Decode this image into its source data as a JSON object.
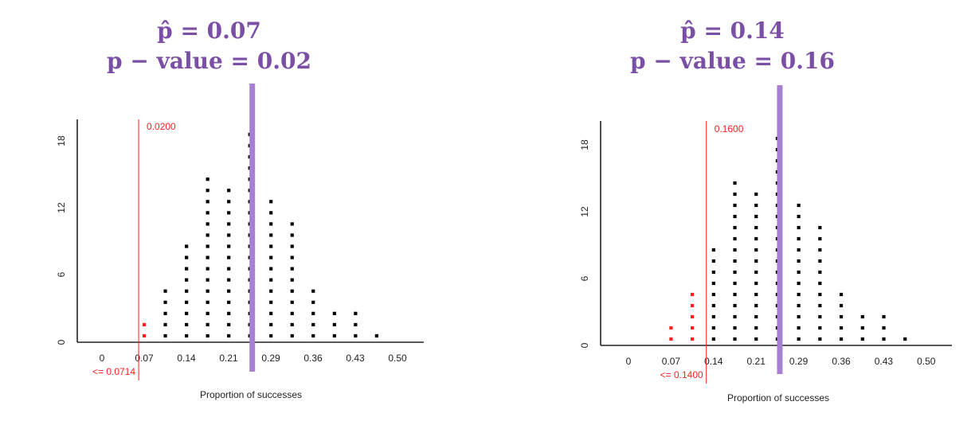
{
  "chart_data": [
    {
      "type": "scatter",
      "subtype": "dotplot",
      "title_line1": "p̂ = 0.07",
      "title_line2": "p − value = 0.02",
      "xlabel": "Proportion of successes",
      "x_ticks": [
        "0",
        "0.07",
        "0.14",
        "0.21",
        "0.29",
        "0.36",
        "0.43",
        "0.50"
      ],
      "y_ticks": [
        "0",
        "6",
        "12",
        "18"
      ],
      "xlim": [
        -0.035,
        0.535
      ],
      "ylim": [
        0,
        19.5
      ],
      "x": [
        0.0714,
        0.1071,
        0.1429,
        0.1786,
        0.2143,
        0.25,
        0.2857,
        0.3214,
        0.3571,
        0.3929,
        0.4286,
        0.4643
      ],
      "counts": [
        2,
        5,
        9,
        15,
        14,
        19,
        13,
        11,
        5,
        3,
        3,
        1
      ],
      "cutoff_value": 0.0714,
      "cutoff_label": "<= 0.0714",
      "proportion_label": "0.0200",
      "observed_line_x": 0.25,
      "colors": {
        "highlight": "#ff2020",
        "dots": "#000000",
        "observed_line": "#a97fd1",
        "title": "#7b4fa6"
      }
    },
    {
      "type": "scatter",
      "subtype": "dotplot",
      "title_line1": "p̂ = 0.14",
      "title_line2": "p − value = 0.16",
      "xlabel": "Proportion of successes",
      "x_ticks": [
        "0",
        "0.07",
        "0.14",
        "0.21",
        "0.29",
        "0.36",
        "0.43",
        "0.50"
      ],
      "y_ticks": [
        "0",
        "6",
        "12",
        "18"
      ],
      "xlim": [
        -0.035,
        0.535
      ],
      "ylim": [
        0,
        19.5
      ],
      "x": [
        0.0714,
        0.1071,
        0.1429,
        0.1786,
        0.2143,
        0.25,
        0.2857,
        0.3214,
        0.3571,
        0.3929,
        0.4286,
        0.4643
      ],
      "counts": [
        2,
        5,
        9,
        15,
        14,
        19,
        13,
        11,
        5,
        3,
        3,
        1
      ],
      "cutoff_value": 0.14,
      "cutoff_label": "<= 0.1400",
      "proportion_label": "0.1600",
      "observed_line_x": 0.25,
      "colors": {
        "highlight": "#ff2020",
        "dots": "#000000",
        "observed_line": "#a97fd1",
        "title": "#7b4fa6"
      }
    }
  ]
}
